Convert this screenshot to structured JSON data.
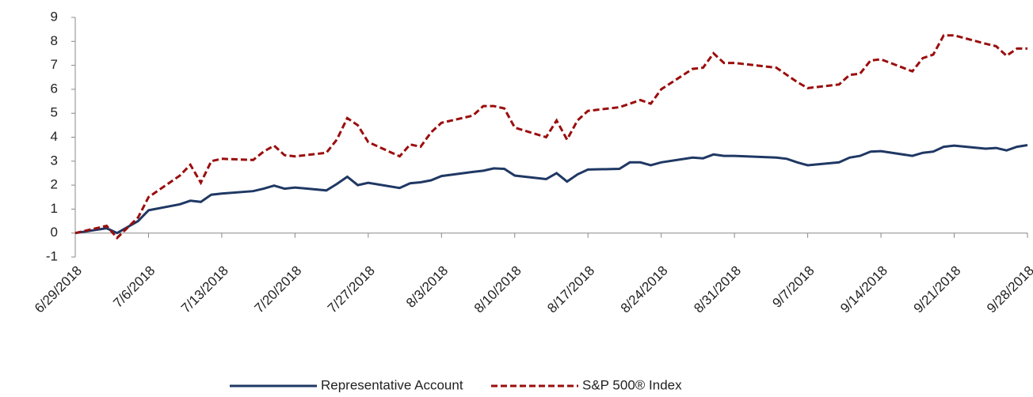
{
  "chart_data": {
    "type": "line",
    "x": [
      "6/29/2018",
      "7/2/2018",
      "7/3/2018",
      "7/5/2018",
      "7/6/2018",
      "7/9/2018",
      "7/10/2018",
      "7/11/2018",
      "7/12/2018",
      "7/13/2018",
      "7/16/2018",
      "7/17/2018",
      "7/18/2018",
      "7/19/2018",
      "7/20/2018",
      "7/23/2018",
      "7/24/2018",
      "7/25/2018",
      "7/26/2018",
      "7/27/2018",
      "7/30/2018",
      "7/31/2018",
      "8/1/2018",
      "8/2/2018",
      "8/3/2018",
      "8/6/2018",
      "8/7/2018",
      "8/8/2018",
      "8/9/2018",
      "8/10/2018",
      "8/13/2018",
      "8/14/2018",
      "8/15/2018",
      "8/16/2018",
      "8/17/2018",
      "8/20/2018",
      "8/21/2018",
      "8/22/2018",
      "8/23/2018",
      "8/24/2018",
      "8/27/2018",
      "8/28/2018",
      "8/29/2018",
      "8/30/2018",
      "8/31/2018",
      "9/4/2018",
      "9/5/2018",
      "9/6/2018",
      "9/7/2018",
      "9/10/2018",
      "9/11/2018",
      "9/12/2018",
      "9/13/2018",
      "9/14/2018",
      "9/17/2018",
      "9/18/2018",
      "9/19/2018",
      "9/20/2018",
      "9/21/2018",
      "9/24/2018",
      "9/25/2018",
      "9/26/2018",
      "9/27/2018",
      "9/28/2018"
    ],
    "series": [
      {
        "name": "Representative Account",
        "color": "#1f3864",
        "dash": false,
        "values": [
          0,
          0.2,
          0.0,
          0.5,
          0.95,
          1.2,
          1.35,
          1.3,
          1.6,
          1.65,
          1.75,
          1.85,
          1.98,
          1.85,
          1.9,
          1.78,
          2.05,
          2.35,
          2.0,
          2.1,
          1.88,
          2.08,
          2.12,
          2.2,
          2.38,
          2.55,
          2.6,
          2.7,
          2.68,
          2.4,
          2.25,
          2.5,
          2.15,
          2.45,
          2.65,
          2.68,
          2.95,
          2.95,
          2.83,
          2.95,
          3.15,
          3.12,
          3.28,
          3.22,
          3.22,
          3.15,
          3.1,
          2.95,
          2.83,
          2.95,
          3.15,
          3.22,
          3.4,
          3.42,
          3.22,
          3.35,
          3.4,
          3.6,
          3.65,
          3.52,
          3.55,
          3.45,
          3.6,
          3.67
        ]
      },
      {
        "name": "S&P 500® Index",
        "color": "#9b0d0d",
        "dash": true,
        "values": [
          0,
          0.3,
          -0.2,
          0.65,
          1.5,
          2.4,
          2.85,
          2.1,
          3.0,
          3.1,
          3.05,
          3.4,
          3.65,
          3.25,
          3.2,
          3.35,
          3.9,
          4.8,
          4.5,
          3.8,
          3.2,
          3.7,
          3.6,
          4.2,
          4.6,
          4.9,
          5.3,
          5.3,
          5.2,
          4.4,
          4.0,
          4.7,
          3.9,
          4.7,
          5.1,
          5.25,
          5.4,
          5.55,
          5.4,
          6.0,
          6.85,
          6.9,
          7.5,
          7.1,
          7.1,
          6.9,
          6.6,
          6.3,
          6.05,
          6.2,
          6.6,
          6.65,
          7.2,
          7.25,
          6.75,
          7.3,
          7.45,
          8.25,
          8.25,
          7.9,
          7.8,
          7.4,
          7.7,
          7.7
        ]
      }
    ],
    "xlim": [
      "6/29/2018",
      "9/28/2018"
    ],
    "xticks": [
      "6/29/2018",
      "7/6/2018",
      "7/13/2018",
      "7/20/2018",
      "7/27/2018",
      "8/3/2018",
      "8/10/2018",
      "8/17/2018",
      "8/24/2018",
      "8/31/2018",
      "9/7/2018",
      "9/14/2018",
      "9/21/2018",
      "9/28/2018"
    ],
    "ylim": [
      -1,
      9
    ],
    "yticks": [
      -1,
      0,
      1,
      2,
      3,
      4,
      5,
      6,
      7,
      8,
      9
    ],
    "grid": false,
    "legend": "bottom"
  }
}
